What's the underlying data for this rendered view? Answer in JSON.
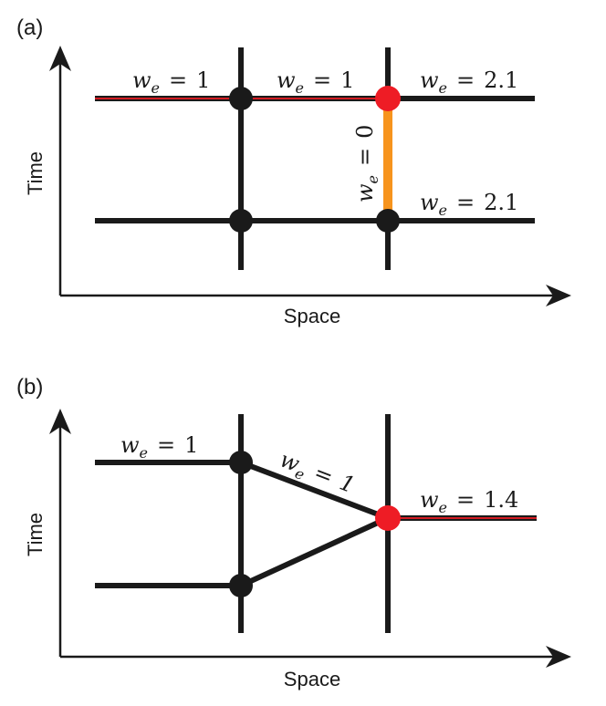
{
  "panels": [
    {
      "id": "a",
      "panel_label": "(a)",
      "y_axis_label": "Time",
      "x_axis_label": "Space",
      "edge_labels": [
        {
          "var": "w",
          "sub": "e",
          "op": "=",
          "val": "1"
        },
        {
          "var": "w",
          "sub": "e",
          "op": "=",
          "val": "1"
        },
        {
          "var": "w",
          "sub": "e",
          "op": "=",
          "val": "2.1"
        },
        {
          "var": "w",
          "sub": "e",
          "op": "=",
          "val": "0"
        },
        {
          "var": "w",
          "sub": "e",
          "op": "=",
          "val": "2.1"
        }
      ]
    },
    {
      "id": "b",
      "panel_label": "(b)",
      "y_axis_label": "Time",
      "x_axis_label": "Space",
      "edge_labels": [
        {
          "var": "w",
          "sub": "e",
          "op": "=",
          "val": "1"
        },
        {
          "var": "w",
          "sub": "e",
          "op": "=",
          "val": "1"
        },
        {
          "var": "w",
          "sub": "e",
          "op": "=",
          "val": "1.4"
        }
      ]
    }
  ],
  "colors": {
    "line": "#1a1a1a",
    "node": "#1a1a1a",
    "highlight_node": "#ee1c25",
    "highlight_path": "#ee1c25",
    "zero_weight_edge": "#f7941d"
  }
}
